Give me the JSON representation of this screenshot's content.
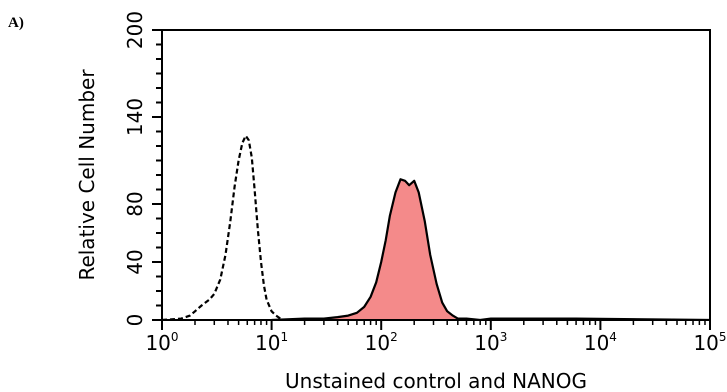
{
  "chart_data": {
    "type": "area",
    "panel_label": "A)",
    "xlabel": "Unstained control and NANOG",
    "ylabel": "Relative Cell Number",
    "x_scale": "log",
    "xlim": [
      1,
      100000
    ],
    "ylim": [
      0,
      200
    ],
    "x_ticks": [
      {
        "base": "10",
        "exp": "0"
      },
      {
        "base": "10",
        "exp": "1"
      },
      {
        "base": "10",
        "exp": "2"
      },
      {
        "base": "10",
        "exp": "3"
      },
      {
        "base": "10",
        "exp": "4"
      },
      {
        "base": "10",
        "exp": "5"
      }
    ],
    "y_ticks": [
      "0",
      "40",
      "80",
      "140",
      "200"
    ],
    "y_tick_values": [
      0,
      40,
      80,
      140,
      200
    ],
    "y_minor_step": 10,
    "grid": false,
    "legend": "none",
    "series": [
      {
        "style": "dashed-outline",
        "color": "#000000",
        "fill": "none",
        "x": [
          1,
          1.5,
          1.8,
          2.0,
          2.3,
          2.7,
          3.0,
          3.4,
          3.8,
          4.2,
          4.6,
          5.0,
          5.4,
          5.8,
          6.2,
          6.6,
          7.0,
          7.5,
          8.0,
          8.5,
          9.0,
          10.0,
          11.0,
          12.0,
          13.0,
          15.0,
          20.0,
          30.0,
          50.0,
          100.0
        ],
        "y": [
          0,
          1,
          3,
          6,
          10,
          14,
          18,
          28,
          45,
          68,
          92,
          110,
          122,
          127,
          124,
          112,
          90,
          62,
          40,
          24,
          14,
          6,
          3,
          1,
          0,
          0,
          0,
          1,
          0,
          0
        ]
      },
      {
        "style": "filled",
        "color": "#000000",
        "fill": "#f48a8a",
        "x": [
          10,
          20,
          30,
          40,
          50,
          60,
          70,
          80,
          90,
          100,
          110,
          120,
          135,
          150,
          165,
          180,
          200,
          220,
          250,
          280,
          320,
          360,
          400,
          450,
          500,
          600,
          800,
          1000,
          3000,
          6000,
          100000
        ],
        "y": [
          0,
          1,
          1,
          2,
          3,
          5,
          9,
          16,
          26,
          40,
          55,
          72,
          88,
          97,
          96,
          93,
          96,
          88,
          68,
          45,
          25,
          12,
          6,
          3,
          1,
          1,
          0,
          1,
          1,
          1,
          0
        ]
      }
    ]
  }
}
